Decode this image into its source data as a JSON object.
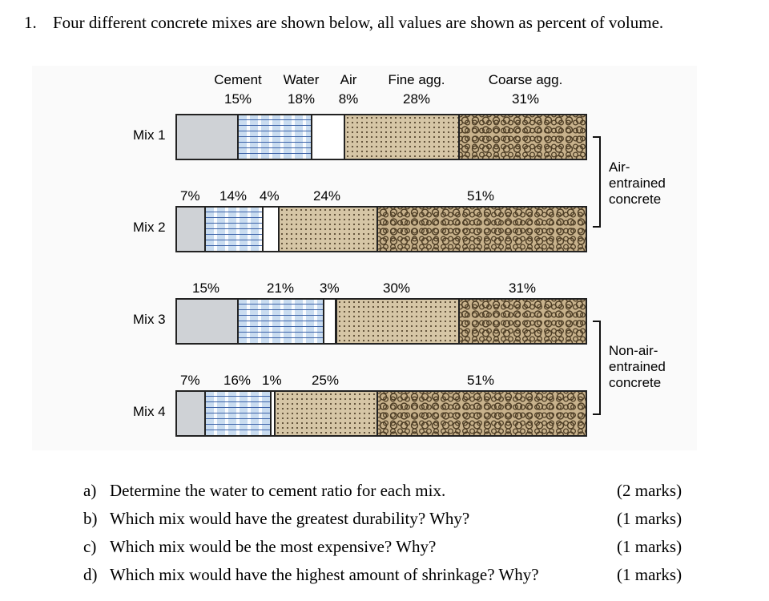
{
  "question": {
    "number": "1.",
    "text": "Four different concrete mixes are shown below, all values are shown as percent of volume."
  },
  "figure": {
    "header": {
      "cement": "Cement",
      "water": "Water",
      "air": "Air",
      "fine": "Fine agg.",
      "coarse": "Coarse agg."
    },
    "groups": {
      "air_entrained": [
        "Air-",
        "entrained",
        "concrete"
      ],
      "non_air_entrained": [
        "Non-air-",
        "entrained",
        "concrete"
      ]
    },
    "mixes": [
      {
        "name": "Mix 1",
        "labels": {
          "cement": "15%",
          "water": "18%",
          "air": "8%",
          "fine": "28%",
          "coarse": "31%"
        },
        "cement": 15,
        "water": 18,
        "air": 8,
        "fine": 28,
        "coarse": 31
      },
      {
        "name": "Mix 2",
        "labels": {
          "cement": "7%",
          "water": "14%",
          "air": "4%",
          "fine": "24%",
          "coarse": "51%"
        },
        "cement": 7,
        "water": 14,
        "air": 4,
        "fine": 24,
        "coarse": 51
      },
      {
        "name": "Mix 3",
        "labels": {
          "cement": "15%",
          "water": "21%",
          "air": "3%",
          "fine": "30%",
          "coarse": "31%"
        },
        "cement": 15,
        "water": 21,
        "air": 3,
        "fine": 30,
        "coarse": 31
      },
      {
        "name": "Mix 4",
        "labels": {
          "cement": "7%",
          "water": "16%",
          "air": "1%",
          "fine": "25%",
          "coarse": "51%"
        },
        "cement": 7,
        "water": 16,
        "air": 1,
        "fine": 25,
        "coarse": 51
      }
    ]
  },
  "parts": [
    {
      "letter": "a)",
      "text": "Determine the water to cement ratio for each mix.",
      "marks": "(2 marks)"
    },
    {
      "letter": "b)",
      "text": "Which mix would have the greatest durability? Why?",
      "marks": "(1 marks)"
    },
    {
      "letter": "c)",
      "text": "Which mix would be the most expensive? Why?",
      "marks": "(1 marks)"
    },
    {
      "letter": "d)",
      "text": "Which mix would have the highest amount of shrinkage? Why?",
      "marks": "(1 marks)"
    }
  ]
}
